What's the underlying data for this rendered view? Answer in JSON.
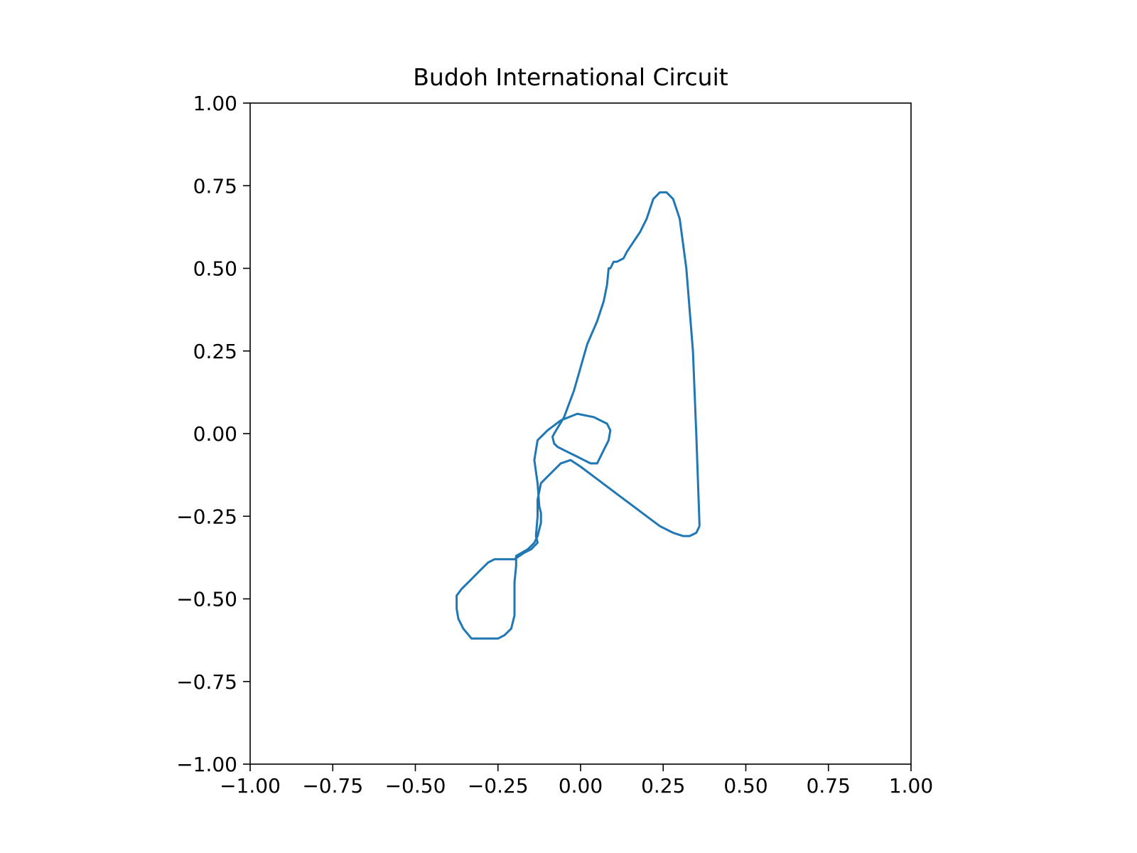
{
  "chart_data": {
    "type": "line",
    "title": "Budoh International Circuit",
    "xlabel": "",
    "ylabel": "",
    "xlim": [
      -1.0,
      1.0
    ],
    "ylim": [
      -1.0,
      1.0
    ],
    "x_ticks": [
      "−1.00",
      "−0.75",
      "−0.50",
      "−0.25",
      "0.00",
      "0.25",
      "0.50",
      "0.75",
      "1.00"
    ],
    "y_ticks": [
      "1.00",
      "0.75",
      "0.50",
      "0.25",
      "0.00",
      "−0.25",
      "−0.50",
      "−0.75",
      "−1.00"
    ],
    "grid": false,
    "legend": false,
    "color": "#1f77b4",
    "series": [
      {
        "x": [
          0.36,
          0.35,
          0.33,
          0.31,
          0.28,
          0.24,
          0.2,
          0.16,
          0.12,
          0.08,
          0.04,
          0.0,
          -0.03,
          -0.06,
          -0.08,
          -0.1,
          -0.12,
          -0.13,
          -0.13,
          -0.135,
          -0.13,
          -0.14,
          -0.15,
          -0.17,
          -0.2,
          -0.22,
          -0.24,
          -0.26,
          -0.28,
          -0.3,
          -0.32,
          -0.34,
          -0.36,
          -0.375,
          -0.375,
          -0.37,
          -0.355,
          -0.33,
          -0.3,
          -0.25,
          -0.23,
          -0.21,
          -0.2,
          -0.2,
          -0.195,
          -0.195,
          -0.16,
          -0.14,
          -0.13,
          -0.12,
          -0.12,
          -0.125,
          -0.13,
          -0.14,
          -0.13,
          -0.1,
          -0.06,
          -0.01,
          0.04,
          0.08,
          0.09,
          0.085,
          0.07,
          0.05,
          0.03,
          0.01,
          -0.01,
          -0.03,
          -0.05,
          -0.07,
          -0.08,
          -0.085,
          -0.08,
          -0.05,
          -0.02,
          0.0,
          0.02,
          0.05,
          0.07,
          0.08,
          0.085,
          0.09,
          0.1,
          0.11,
          0.13,
          0.14,
          0.16,
          0.18,
          0.2,
          0.22,
          0.24,
          0.26,
          0.28,
          0.3,
          0.32,
          0.34,
          0.35,
          0.36
        ],
        "y": [
          -0.28,
          -0.3,
          -0.31,
          -0.31,
          -0.3,
          -0.28,
          -0.25,
          -0.22,
          -0.19,
          -0.16,
          -0.13,
          -0.1,
          -0.08,
          -0.09,
          -0.11,
          -0.13,
          -0.15,
          -0.2,
          -0.25,
          -0.31,
          -0.33,
          -0.34,
          -0.35,
          -0.36,
          -0.38,
          -0.38,
          -0.38,
          -0.38,
          -0.39,
          -0.41,
          -0.43,
          -0.45,
          -0.47,
          -0.49,
          -0.53,
          -0.56,
          -0.59,
          -0.62,
          -0.62,
          -0.62,
          -0.61,
          -0.59,
          -0.55,
          -0.45,
          -0.4,
          -0.37,
          -0.35,
          -0.33,
          -0.31,
          -0.27,
          -0.24,
          -0.22,
          -0.15,
          -0.08,
          -0.02,
          0.01,
          0.04,
          0.06,
          0.05,
          0.03,
          0.01,
          -0.02,
          -0.05,
          -0.09,
          -0.09,
          -0.08,
          -0.07,
          -0.06,
          -0.05,
          -0.04,
          -0.03,
          -0.01,
          0.0,
          0.05,
          0.13,
          0.2,
          0.27,
          0.34,
          0.4,
          0.45,
          0.5,
          0.5,
          0.52,
          0.52,
          0.53,
          0.55,
          0.58,
          0.61,
          0.65,
          0.71,
          0.73,
          0.73,
          0.71,
          0.65,
          0.5,
          0.25,
          0.0,
          -0.28
        ]
      }
    ]
  }
}
